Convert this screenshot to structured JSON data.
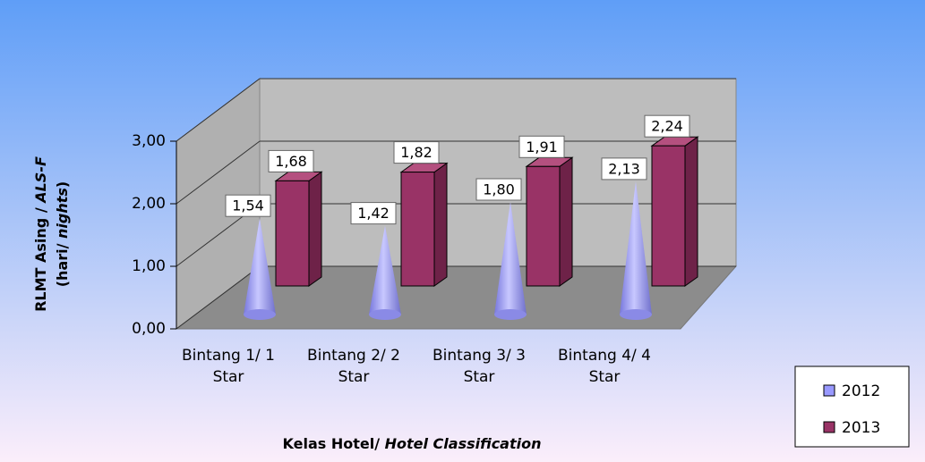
{
  "chart_data": {
    "type": "bar3d",
    "xlabel": [
      "Kelas Hotel/ ",
      "Hotel Classification"
    ],
    "ylabel": [
      [
        "RLMT Asing / ",
        "ALS-F"
      ],
      [
        "(hari/ ",
        "nights",
        ")"
      ]
    ],
    "categories": [
      "Bintang 1/ 1 Star",
      "Bintang 2/ 2 Star",
      "Bintang 3/ 3 Star",
      "Bintang 4/ 4 Star"
    ],
    "series": [
      {
        "name": "2012",
        "color": "#9999ff",
        "shape": "cone",
        "values": [
          1.54,
          1.42,
          1.8,
          2.13
        ],
        "value_labels": [
          "1,54",
          "1,42",
          "1,80",
          "2,13"
        ]
      },
      {
        "name": "2013",
        "color": "#993366",
        "shape": "box",
        "values": [
          1.68,
          1.82,
          1.91,
          2.24
        ],
        "value_labels": [
          "1,68",
          "1,82",
          "1,91",
          "2,24"
        ]
      }
    ],
    "ylim": [
      0,
      3
    ],
    "yticks": [
      {
        "value": 0,
        "label": "0,00"
      },
      {
        "value": 1,
        "label": "1,00"
      },
      {
        "value": 2,
        "label": "2,00"
      },
      {
        "value": 3,
        "label": "3,00"
      }
    ],
    "grid": true,
    "legend": "bottom-right"
  }
}
